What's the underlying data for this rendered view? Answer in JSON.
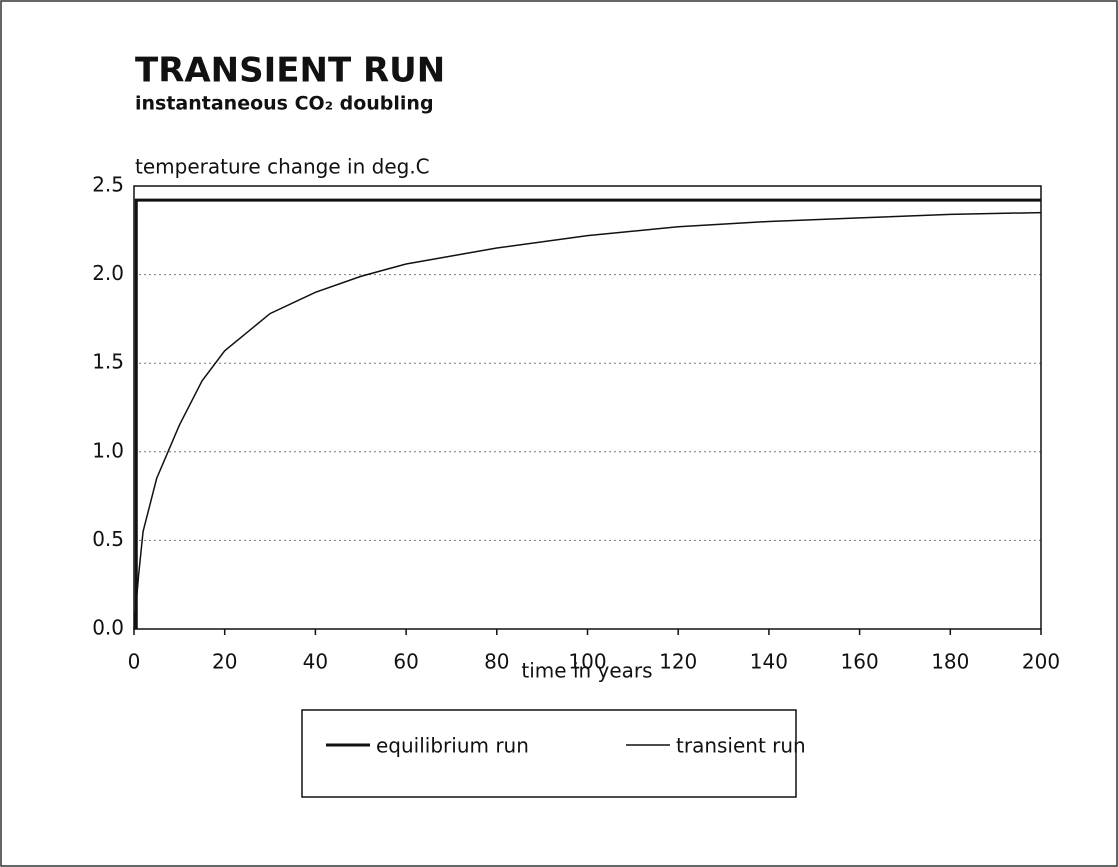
{
  "chart_data": {
    "type": "line",
    "title": "TRANSIENT RUN",
    "subtitle": "instantaneous CO₂ doubling",
    "y_label": "temperature change in deg.C",
    "x_label": "time in years",
    "xlim": [
      0,
      200
    ],
    "ylim": [
      0,
      2.5
    ],
    "xticks": [
      0,
      20,
      40,
      60,
      80,
      100,
      120,
      140,
      160,
      180,
      200
    ],
    "yticks": [
      {
        "value": 0,
        "label": "0.0"
      },
      {
        "value": 0.5,
        "label": "0.5"
      },
      {
        "value": 1,
        "label": "1.0"
      },
      {
        "value": 1.5,
        "label": "1.5"
      },
      {
        "value": 2,
        "label": "2.0"
      },
      {
        "value": 2.5,
        "label": "2.5"
      }
    ],
    "grid": true,
    "series": [
      {
        "name": "equilibrium run",
        "color": "#111111",
        "line_width": 3,
        "x": [
          0.5,
          0.5,
          200
        ],
        "values": [
          0,
          2.42,
          2.42
        ]
      },
      {
        "name": "transient run",
        "color": "#111111",
        "line_width": 1.5,
        "x": [
          0,
          1,
          2,
          5,
          10,
          15,
          20,
          30,
          40,
          50,
          60,
          80,
          100,
          120,
          140,
          160,
          180,
          200
        ],
        "values": [
          0,
          0.3,
          0.55,
          0.85,
          1.15,
          1.4,
          1.57,
          1.78,
          1.9,
          1.99,
          2.06,
          2.15,
          2.22,
          2.27,
          2.3,
          2.32,
          2.34,
          2.35
        ]
      }
    ]
  }
}
